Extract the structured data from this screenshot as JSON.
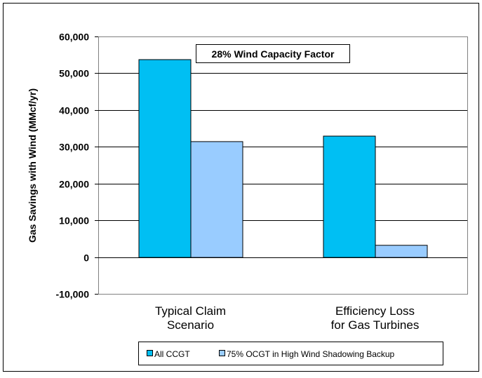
{
  "chart_data": {
    "type": "bar",
    "annotation": "28% Wind Capacity Factor",
    "ylabel": "Gas Savings with Wind (MMcf/yr)",
    "categories": [
      [
        "Typical Claim",
        "Scenario"
      ],
      [
        "Efficiency Loss",
        "for Gas Turbines"
      ]
    ],
    "series": [
      {
        "name": "All CCGT",
        "values": [
          53800,
          33000
        ],
        "color": "#00BFF3"
      },
      {
        "name": "75% OCGT in High Wind Shadowing Backup",
        "values": [
          31500,
          3300
        ],
        "color": "#99CCFF"
      }
    ],
    "ylim": [
      -10000,
      60000
    ],
    "yticks": [
      -10000,
      0,
      10000,
      20000,
      30000,
      40000,
      50000,
      60000
    ],
    "ytick_labels": [
      "-10,000",
      "0",
      "10,000",
      "20,000",
      "30,000",
      "40,000",
      "50,000",
      "60,000"
    ],
    "grid": true,
    "legend_position": "bottom"
  }
}
